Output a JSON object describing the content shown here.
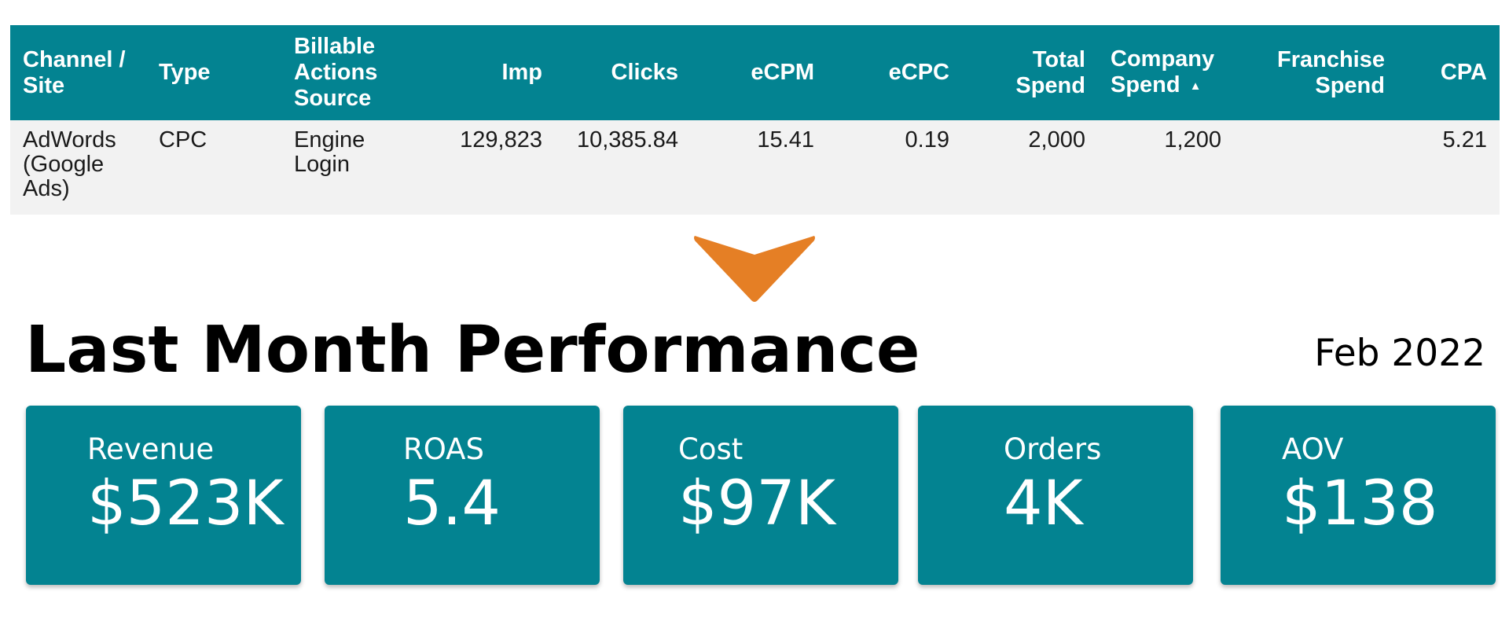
{
  "table": {
    "headers": [
      "Channel / Site",
      "Type",
      "Billable Actions Source",
      "Imp",
      "Clicks",
      "eCPM",
      "eCPC",
      "Total Spend",
      "Company Spend",
      "Franchise Spend",
      "CPA"
    ],
    "sort_indicator": "▲",
    "rows": [
      {
        "channel_site": "AdWords (Google Ads)",
        "type": "CPC",
        "billable_actions_source": "Engine Login",
        "imp": "129,823",
        "clicks": "10,385.84",
        "ecpm": "15.41",
        "ecpc": "0.19",
        "total_spend": "2,000",
        "company_spend": "1,200",
        "franchise_spend": "",
        "cpa": "5.21"
      }
    ]
  },
  "arrow": {
    "icon": "arrow-down-icon",
    "color": "#e57f25"
  },
  "performance": {
    "title": "Last Month Performance",
    "period": "Feb 2022"
  },
  "kpis": [
    {
      "label": "Revenue",
      "value": "$523K"
    },
    {
      "label": "ROAS",
      "value": "5.4"
    },
    {
      "label": "Cost",
      "value": "$97K"
    },
    {
      "label": "Orders",
      "value": "4K"
    },
    {
      "label": "AOV",
      "value": "$138"
    }
  ],
  "colors": {
    "accent": "#038391",
    "row_background": "#f2f2f2",
    "arrow": "#e57f25"
  }
}
